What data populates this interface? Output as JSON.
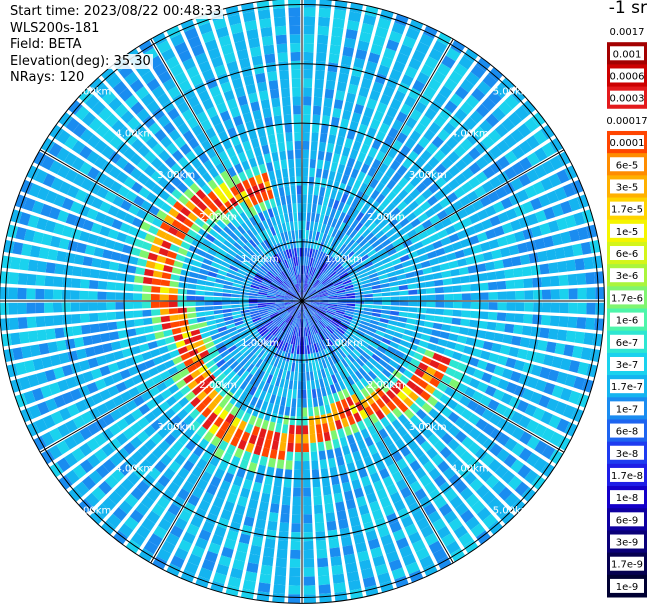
{
  "header": {
    "start_time": "Start time: 2023/08/22 00:48:33",
    "instrument": "WLS200s-181",
    "field": "Field: BETA",
    "elevation": "Elevation(deg): 35.30",
    "nrays": "NRays: 120"
  },
  "colorbar": {
    "units_label": "-1 sr",
    "labels": [
      "0.0017",
      "0.001",
      "0.0006",
      "0.0003",
      "0.00017",
      "0.0001",
      "6e-5",
      "3e-5",
      "1.7e-5",
      "1e-5",
      "6e-6",
      "3e-6",
      "1.7e-6",
      "1e-6",
      "6e-7",
      "3e-7",
      "1.7e-7",
      "1e-7",
      "6e-8",
      "3e-8",
      "1.7e-8",
      "1e-8",
      "6e-9",
      "3e-9",
      "1.7e-9",
      "1e-9"
    ],
    "colors": [
      "#ffffff",
      "#a30000",
      "#cc0000",
      "#e31a1c",
      "#ffffff",
      "#ff4500",
      "#ff8c00",
      "#ffb000",
      "#ffd400",
      "#f5f500",
      "#d4f51a",
      "#aaf53c",
      "#7ff570",
      "#4df5aa",
      "#2ee6d2",
      "#1ad2ee",
      "#14b4f0",
      "#1a8cf0",
      "#1e64f0",
      "#1e3cf0",
      "#1e1ee6",
      "#1400c8",
      "#0f00a0",
      "#0a0078",
      "#050050",
      "#000032"
    ]
  },
  "chart_data": {
    "type": "ppi",
    "field": "BETA",
    "units": "sr-1",
    "nrays": 120,
    "elevation_deg": 35.3,
    "range_rings_km": [
      1,
      2,
      3,
      4,
      5
    ],
    "ring_labels": [
      "1.00km",
      "2.00km",
      "3.00km",
      "4.00km",
      "5.00km"
    ],
    "max_range_km": 5.1,
    "azimuth_spokes_deg": [
      0,
      30,
      60,
      90,
      120,
      150,
      180,
      210,
      240,
      270,
      300,
      330
    ],
    "features": {
      "background_beta": "1e-7 to 3e-7",
      "near_field_beta": "1e-8 to 3e-8",
      "cloud_ring_range_km": 2.3,
      "cloud_ring_beta": "1e-5 to 6e-5",
      "cloud_ring_azimuth_deg": [
        110,
        345
      ]
    }
  }
}
